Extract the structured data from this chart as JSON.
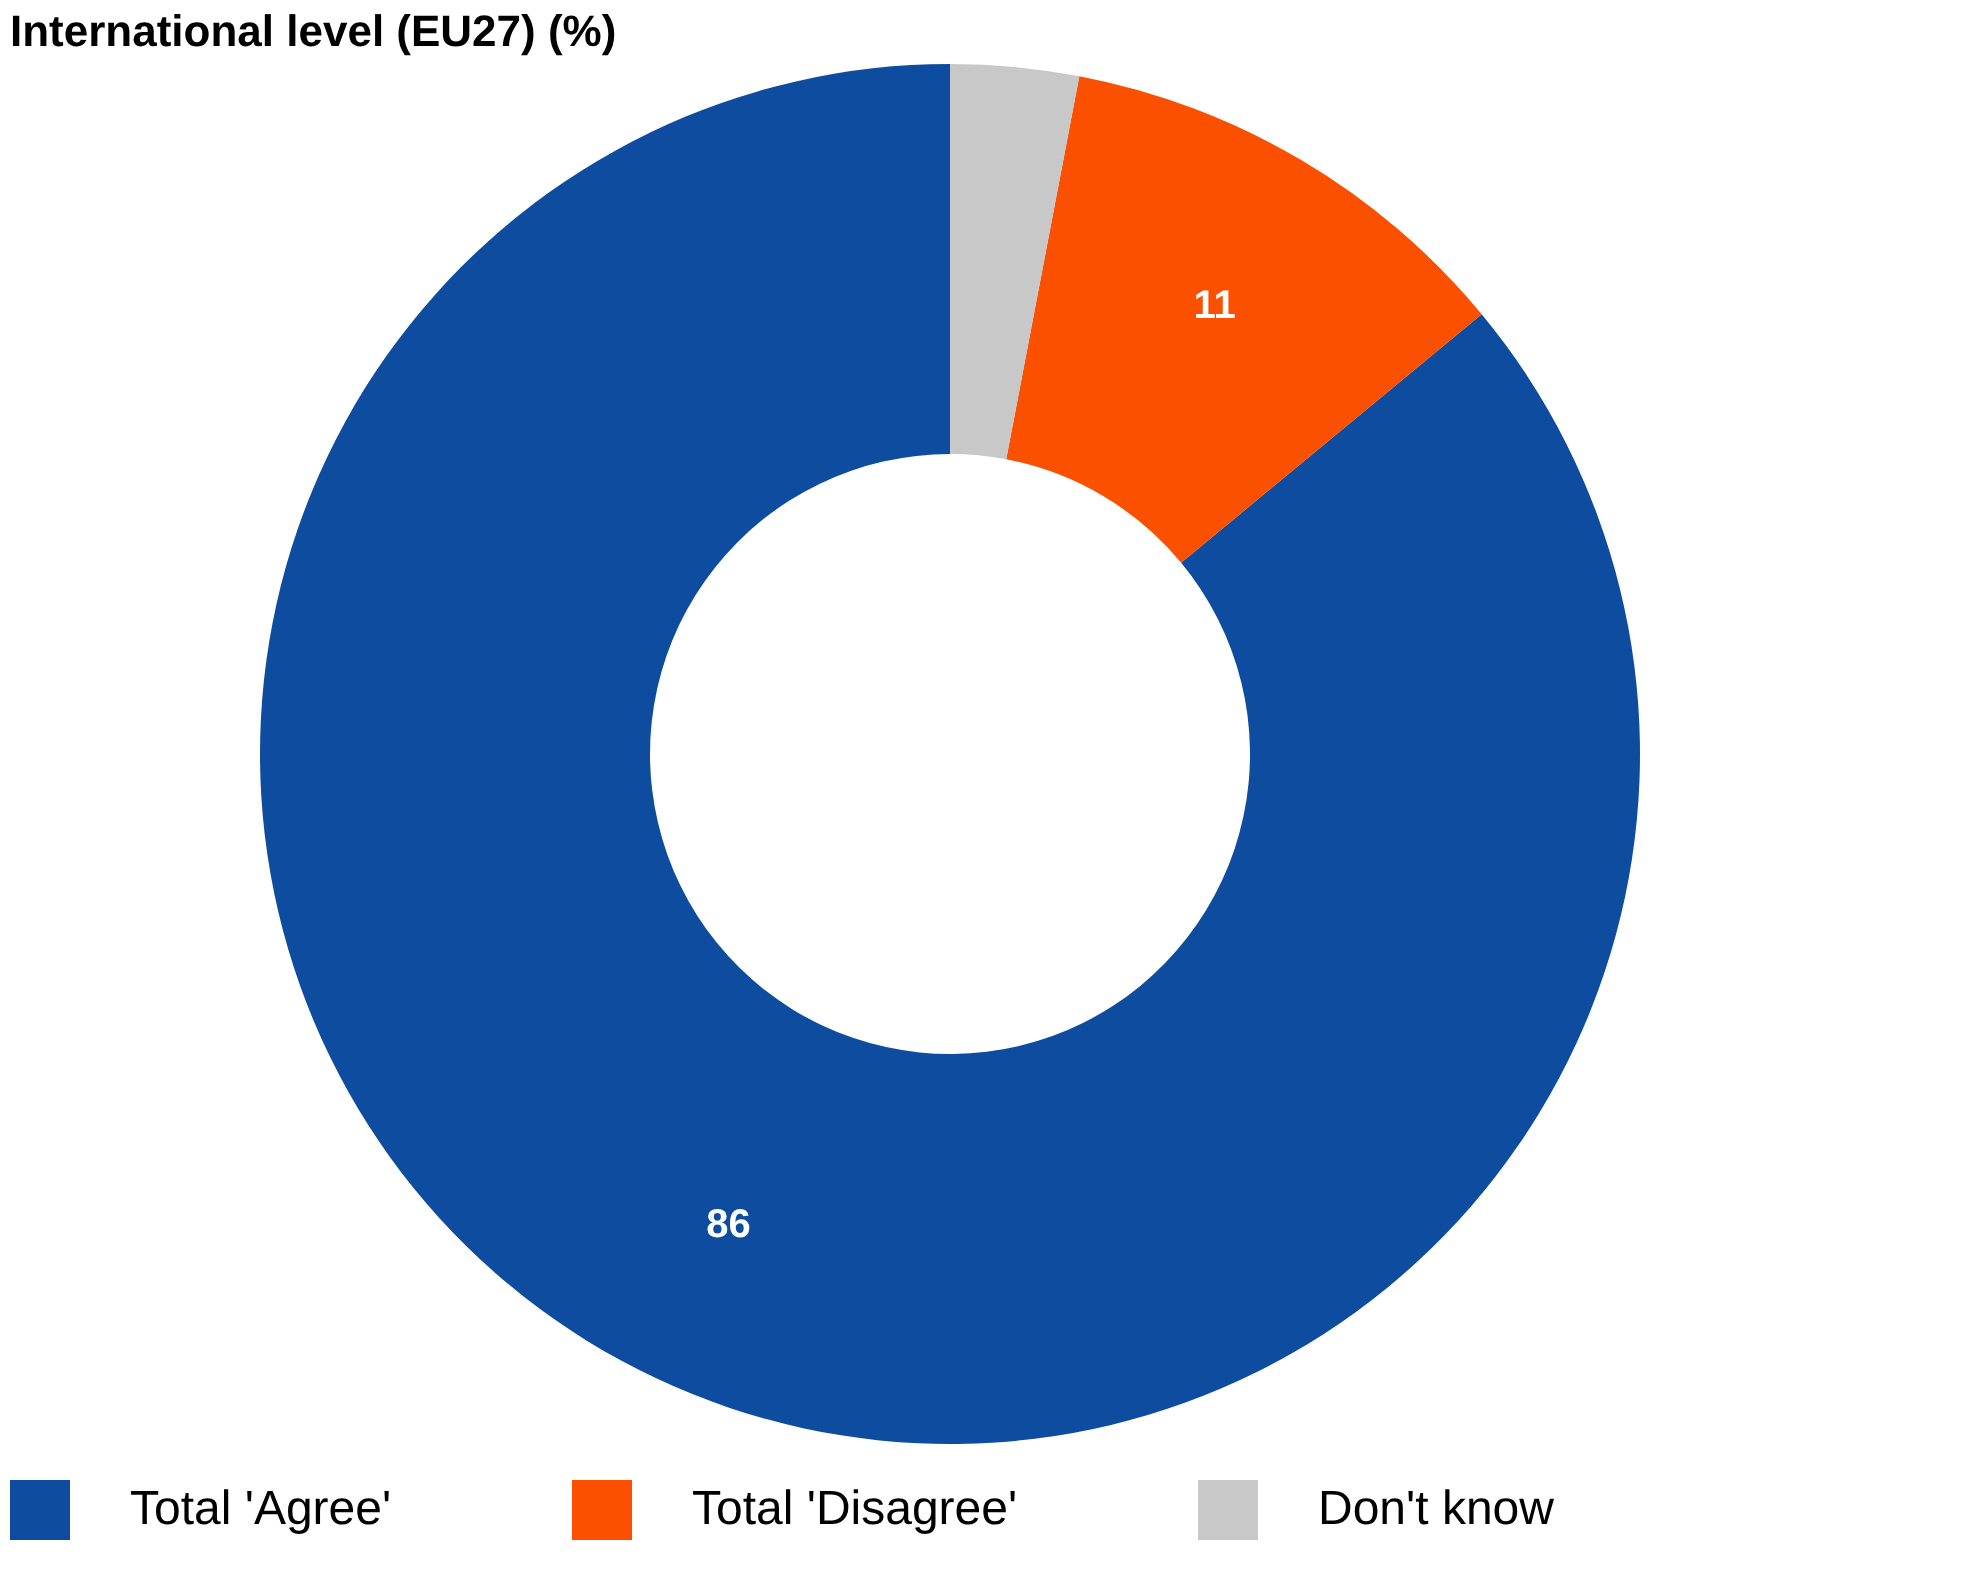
{
  "chart_data": {
    "type": "donut",
    "title": "International level (EU27) (%)",
    "categories": [
      "Total 'Agree'",
      "Total 'Disagree'",
      "Don't know"
    ],
    "values": [
      86,
      11,
      3
    ],
    "colors": [
      "#0d4c9e",
      "#fa5000",
      "#c8c8c8"
    ],
    "value_labels": [
      "86",
      "11",
      null
    ],
    "legend": "bottom"
  }
}
